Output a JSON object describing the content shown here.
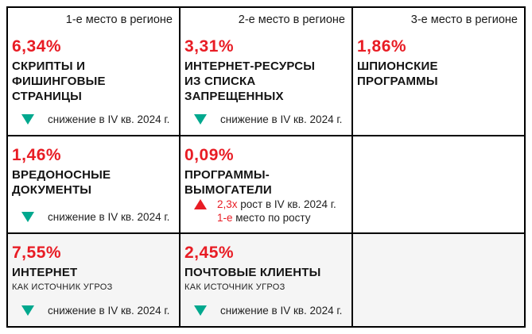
{
  "colors": {
    "accent_red": "#e81c24",
    "trend_down_teal": "#00a88e",
    "text_dark": "#1a1a1a",
    "bottom_row_bg": "#f5f5f5",
    "border": "#000000"
  },
  "chart_data": {
    "type": "table",
    "columns": [
      "1-е место в регионе",
      "2-е место в регионе",
      "3-е место в регионе"
    ],
    "cells": [
      {
        "rank_header": "1-е место в регионе",
        "percent": "6,34%",
        "value_percent": 6.34,
        "title": "СКРИПТЫ И\nФИШИНГОВЫЕ\nСТРАНИЦЫ",
        "trend_direction": "down",
        "trend_text": "снижение в IV кв. 2024 г."
      },
      {
        "rank_header": "2-е место в регионе",
        "percent": "3,31%",
        "value_percent": 3.31,
        "title": "ИНТЕРНЕТ-РЕСУРСЫ\nИЗ СПИСКА\nЗАПРЕЩЕННЫХ",
        "trend_direction": "down",
        "trend_text": "снижение в IV кв. 2024 г."
      },
      {
        "rank_header": "3-е место в регионе",
        "percent": "1,86%",
        "value_percent": 1.86,
        "title": "ШПИОНСКИЕ\nПРОГРАММЫ",
        "trend_direction": "none",
        "trend_text": ""
      },
      {
        "percent": "1,46%",
        "value_percent": 1.46,
        "title": "ВРЕДОНОСНЫЕ\nДОКУМЕНТЫ",
        "trend_direction": "down",
        "trend_text": "снижение в IV кв. 2024 г."
      },
      {
        "percent": "0,09%",
        "value_percent": 0.09,
        "title": "ПРОГРАММЫ-\nВЫМОГАТЕЛИ",
        "trend_direction": "up",
        "trend_line1_accent": "2,3x",
        "trend_line1_text": " рост в IV кв. 2024 г.",
        "trend_line2_accent": "1-е",
        "trend_line2_text": " место по росту"
      },
      {
        "empty": true
      },
      {
        "percent": "7,55%",
        "value_percent": 7.55,
        "title": "ИНТЕРНЕТ",
        "subtitle": "КАК ИСТОЧНИК УГРОЗ",
        "trend_direction": "down",
        "trend_text": "снижение в IV кв. 2024 г."
      },
      {
        "percent": "2,45%",
        "value_percent": 2.45,
        "title": "ПОЧТОВЫЕ КЛИЕНТЫ",
        "subtitle": "КАК ИСТОЧНИК УГРОЗ",
        "trend_direction": "down",
        "trend_text": "снижение в IV кв. 2024 г."
      },
      {
        "empty": true
      }
    ]
  }
}
